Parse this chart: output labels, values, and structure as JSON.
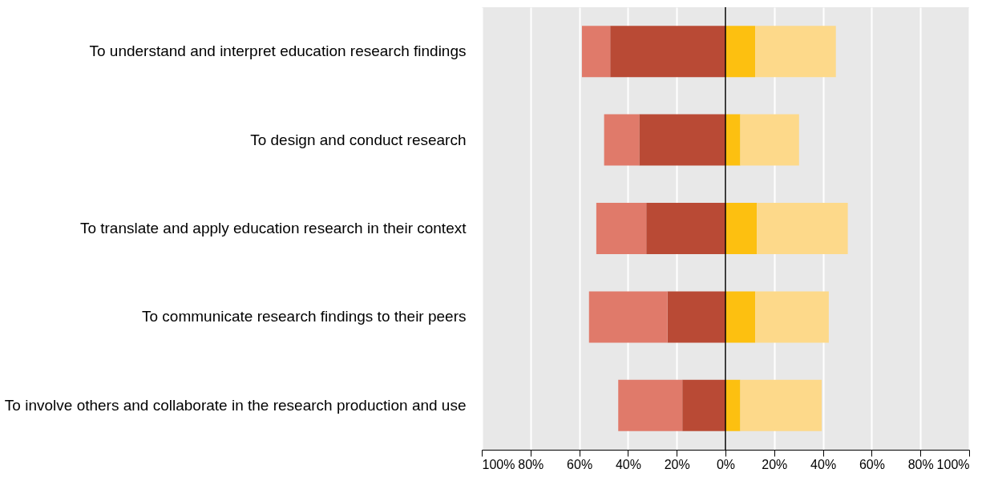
{
  "chart_data": {
    "type": "bar",
    "orientation": "horizontal",
    "stacked": true,
    "categories": [
      "To understand and interpret education research findings",
      "To design and conduct research",
      "To translate and apply education research in their context",
      "To communicate research findings to their peers",
      "To involve others and collaborate in the research production and use"
    ],
    "series": [
      {
        "color": "#b94a35",
        "values": [
          -47.3,
          -35.4,
          -32.5,
          -23.8,
          -17.7
        ]
      },
      {
        "color": "#e07a6a",
        "values": [
          -11.6,
          -14.4,
          -20.5,
          -32.2,
          -26.3
        ]
      },
      {
        "color": "#fdc010",
        "values": [
          12.2,
          6.1,
          12.9,
          12.2,
          6.1
        ]
      },
      {
        "color": "#fdd98a",
        "values": [
          33.1,
          24.1,
          37.3,
          30.2,
          33.4
        ]
      }
    ],
    "xlim": [
      -100,
      100
    ],
    "xticks": [
      {
        "value": -100,
        "label": "100%"
      },
      {
        "value": -80,
        "label": "80%"
      },
      {
        "value": -60,
        "label": "60%"
      },
      {
        "value": -40,
        "label": "40%"
      },
      {
        "value": -20,
        "label": "20%"
      },
      {
        "value": 0,
        "label": "0%"
      },
      {
        "value": 20,
        "label": "20%"
      },
      {
        "value": 40,
        "label": "40%"
      },
      {
        "value": 60,
        "label": "60%"
      },
      {
        "value": 80,
        "label": "80%"
      },
      {
        "value": 100,
        "label": "100%"
      }
    ],
    "ref_lines": [
      {
        "axis": "x",
        "value": 0,
        "color": "#000000"
      }
    ],
    "grid": "x",
    "legend": false
  }
}
